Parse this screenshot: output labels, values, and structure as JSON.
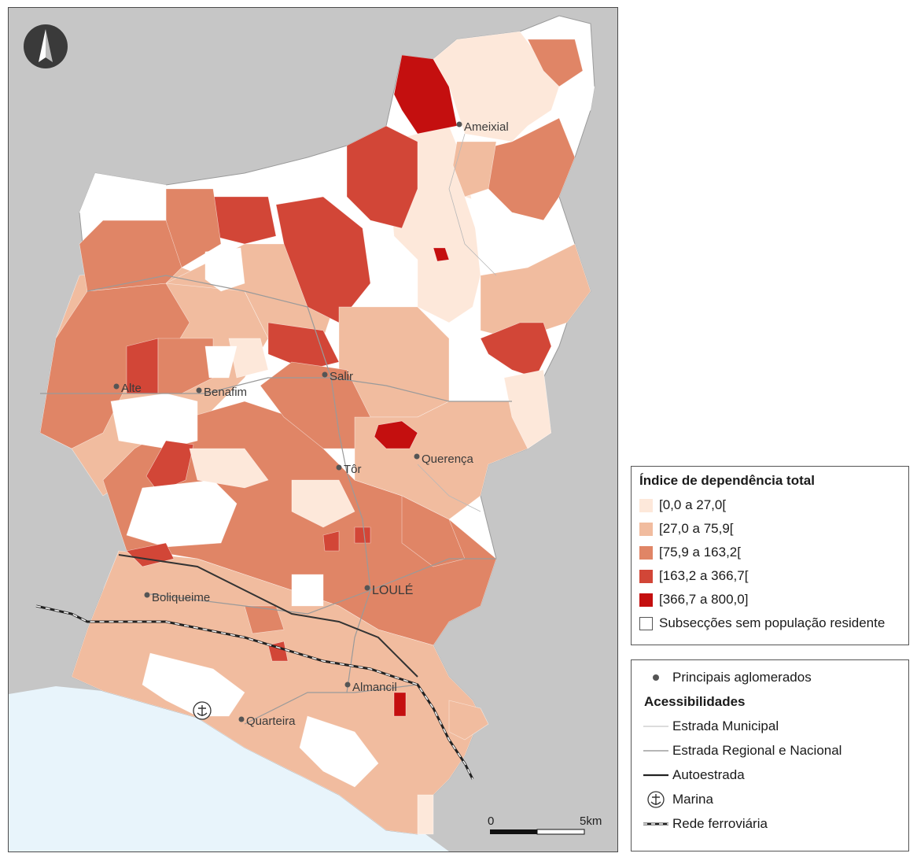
{
  "legend": {
    "title": "Índice de dependência total",
    "classes": [
      {
        "label": "[0,0 a 27,0[",
        "color": "#fde8da"
      },
      {
        "label": "[27,0 a 75,9[",
        "color": "#f1bc9f"
      },
      {
        "label": "[75,9 a 163,2[",
        "color": "#e08566"
      },
      {
        "label": "[163,2 a 366,7[",
        "color": "#d24637"
      },
      {
        "label": "[366,7 a 800,0]",
        "color": "#c40f0f"
      },
      {
        "label": "Subsecções sem população residente",
        "color": "#ffffff"
      }
    ]
  },
  "accessibility_legend": {
    "aglomerados_label": "Principais aglomerados",
    "title": "Acessibilidades",
    "municipal_road": "Estrada Municipal",
    "regional_road": "Estrada Regional e Nacional",
    "motorway": "Autoestrada",
    "marina": "Marina",
    "railway": "Rede ferroviária"
  },
  "places": {
    "ameixial": "Ameixial",
    "salir": "Salir",
    "alte": "Alte",
    "benafim": "Benafim",
    "querenca": "Querença",
    "tor": "Tôr",
    "loule": "LOULÉ",
    "boliqueime": "Boliqueime",
    "almancil": "Almancil",
    "quarteira": "Quarteira"
  },
  "scale_bar": {
    "start": "0",
    "end": "5km"
  },
  "north_arrow": "north-arrow-icon"
}
